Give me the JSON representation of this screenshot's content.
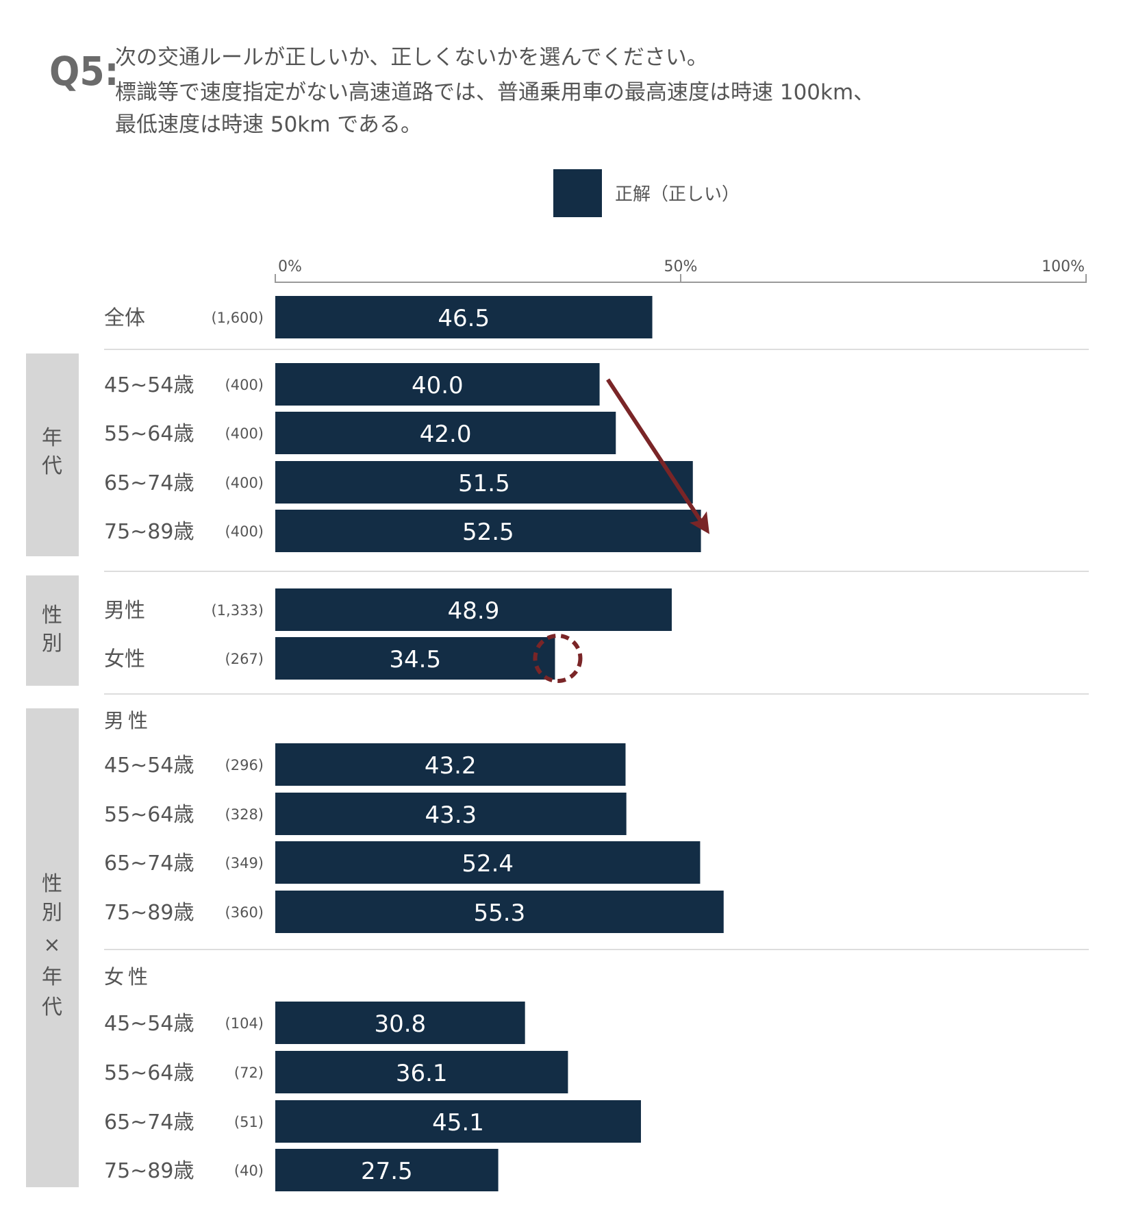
{
  "question": {
    "number": "Q5:",
    "lines": [
      "次の交通ルールが正しいか、正しくないかを選んでください。",
      "標識等で速度指定がない高速道路では、普通乗用車の最高速度は時速 100km、",
      "最低速度は時速 50km である。"
    ]
  },
  "colors": {
    "bar": "#132d45",
    "accent": "#7a2527",
    "group_bg": "#d6d6d6",
    "axis": "#999999",
    "text": "#555555"
  },
  "chart_data": {
    "type": "bar",
    "orientation": "horizontal",
    "xlim": [
      0,
      100
    ],
    "x_ticks": [
      "0%",
      "50%",
      "100%"
    ],
    "series": [
      {
        "name": "正解（正しい）",
        "values": [
          46.5,
          40.0,
          42.0,
          51.5,
          52.5,
          48.9,
          34.5,
          43.2,
          43.3,
          52.4,
          55.3,
          30.8,
          36.1,
          45.1,
          27.5
        ]
      }
    ],
    "legend": {
      "position": "top-center"
    },
    "groups": [
      {
        "label": "",
        "rows": [
          {
            "label": "全体",
            "n": "(1,600)",
            "value": 46.5,
            "value_label": "46.5"
          }
        ]
      },
      {
        "label": "年代",
        "rows": [
          {
            "label": "45~54歳",
            "n": "(400)",
            "value": 40.0,
            "value_label": "40.0"
          },
          {
            "label": "55~64歳",
            "n": "(400)",
            "value": 42.0,
            "value_label": "42.0"
          },
          {
            "label": "65~74歳",
            "n": "(400)",
            "value": 51.5,
            "value_label": "51.5"
          },
          {
            "label": "75~89歳",
            "n": "(400)",
            "value": 52.5,
            "value_label": "52.5"
          }
        ]
      },
      {
        "label": "性別",
        "rows": [
          {
            "label": "男性",
            "n": "(1,333)",
            "value": 48.9,
            "value_label": "48.9"
          },
          {
            "label": "女性",
            "n": "(267)",
            "value": 34.5,
            "value_label": "34.5"
          }
        ]
      },
      {
        "label": "性別×年代",
        "subgroups": [
          {
            "label": "男性",
            "rows": [
              {
                "label": "45~54歳",
                "n": "(296)",
                "value": 43.2,
                "value_label": "43.2"
              },
              {
                "label": "55~64歳",
                "n": "(328)",
                "value": 43.3,
                "value_label": "43.3"
              },
              {
                "label": "65~74歳",
                "n": "(349)",
                "value": 52.4,
                "value_label": "52.4"
              },
              {
                "label": "75~89歳",
                "n": "(360)",
                "value": 55.3,
                "value_label": "55.3"
              }
            ]
          },
          {
            "label": "女性",
            "rows": [
              {
                "label": "45~54歳",
                "n": "(104)",
                "value": 30.8,
                "value_label": "30.8"
              },
              {
                "label": "55~64歳",
                "n": "(72)",
                "value": 36.1,
                "value_label": "36.1"
              },
              {
                "label": "65~74歳",
                "n": "(51)",
                "value": 45.1,
                "value_label": "45.1"
              },
              {
                "label": "75~89歳",
                "n": "(40)",
                "value": 27.5,
                "value_label": "27.5"
              }
            ]
          }
        ]
      }
    ],
    "annotations": [
      {
        "type": "arrow",
        "from_value": 40.0,
        "to_value": 52.5,
        "from_row": "45~54歳",
        "to_row": "75~89歳",
        "group": "年代"
      },
      {
        "type": "dashed-circle",
        "row": "女性",
        "group": "性別",
        "value": 34.5
      }
    ]
  }
}
